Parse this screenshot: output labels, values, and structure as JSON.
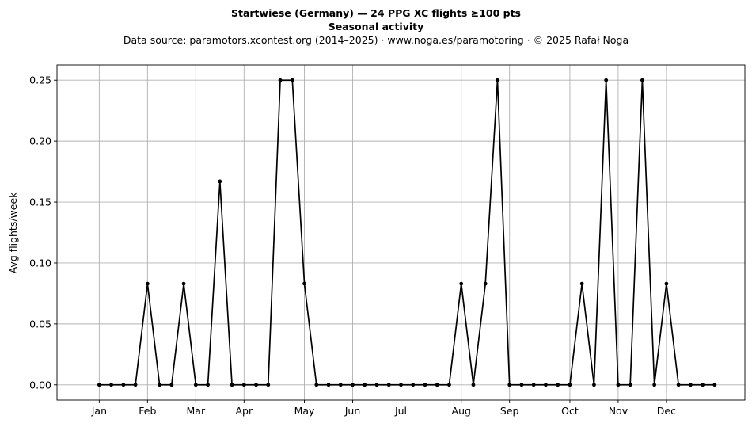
{
  "chart_data": {
    "type": "line",
    "title": "Startwiese (Germany)  —  24 PPG XC flights ≥100 pts",
    "subtitle": "Seasonal activity",
    "source_line": "Data source: paramotors.xcontest.org (2014–2025)  ·  www.noga.es/paramotoring  ·  © 2025 Rafał Noga",
    "xlabel": "",
    "ylabel": "Avg flights/week",
    "x_unit": "week",
    "xlim": [
      -2.5,
      54.5
    ],
    "ylim": [
      -0.0125,
      0.2625
    ],
    "grid": true,
    "legend": "none",
    "line_color": "#000000",
    "grid_color": "#b0b0b0",
    "month_ticks": [
      {
        "label": "Jan",
        "week": 1
      },
      {
        "label": "Feb",
        "week": 5
      },
      {
        "label": "Mar",
        "week": 9
      },
      {
        "label": "Apr",
        "week": 13
      },
      {
        "label": "May",
        "week": 18
      },
      {
        "label": "Jun",
        "week": 22
      },
      {
        "label": "Jul",
        "week": 26
      },
      {
        "label": "Aug",
        "week": 31
      },
      {
        "label": "Sep",
        "week": 35
      },
      {
        "label": "Oct",
        "week": 40
      },
      {
        "label": "Nov",
        "week": 44
      },
      {
        "label": "Dec",
        "week": 48
      }
    ],
    "y_ticks": [
      0.0,
      0.05,
      0.1,
      0.15,
      0.2,
      0.25
    ],
    "y_tick_labels": [
      "0.00",
      "0.05",
      "0.10",
      "0.15",
      "0.20",
      "0.25"
    ],
    "series": [
      {
        "x": [
          1,
          2,
          3,
          4,
          5,
          6,
          7,
          8,
          9,
          10,
          11,
          12,
          13,
          14,
          15,
          16,
          17,
          18,
          19,
          20,
          21,
          22,
          23,
          24,
          25,
          26,
          27,
          28,
          29,
          30,
          31,
          32,
          33,
          34,
          35,
          36,
          37,
          38,
          39,
          40,
          41,
          42,
          43,
          44,
          45,
          46,
          47,
          48,
          49,
          50,
          51,
          52
        ],
        "values": [
          0,
          0,
          0,
          0,
          0.083,
          0,
          0,
          0.083,
          0,
          0,
          0.167,
          0,
          0,
          0,
          0,
          0.25,
          0.25,
          0.083,
          0,
          0,
          0,
          0,
          0,
          0,
          0,
          0,
          0,
          0,
          0,
          0,
          0.083,
          0,
          0.083,
          0.25,
          0,
          0,
          0,
          0,
          0,
          0,
          0.083,
          0,
          0.25,
          0,
          0,
          0.25,
          0,
          0.083,
          0,
          0,
          0,
          0
        ]
      }
    ]
  }
}
